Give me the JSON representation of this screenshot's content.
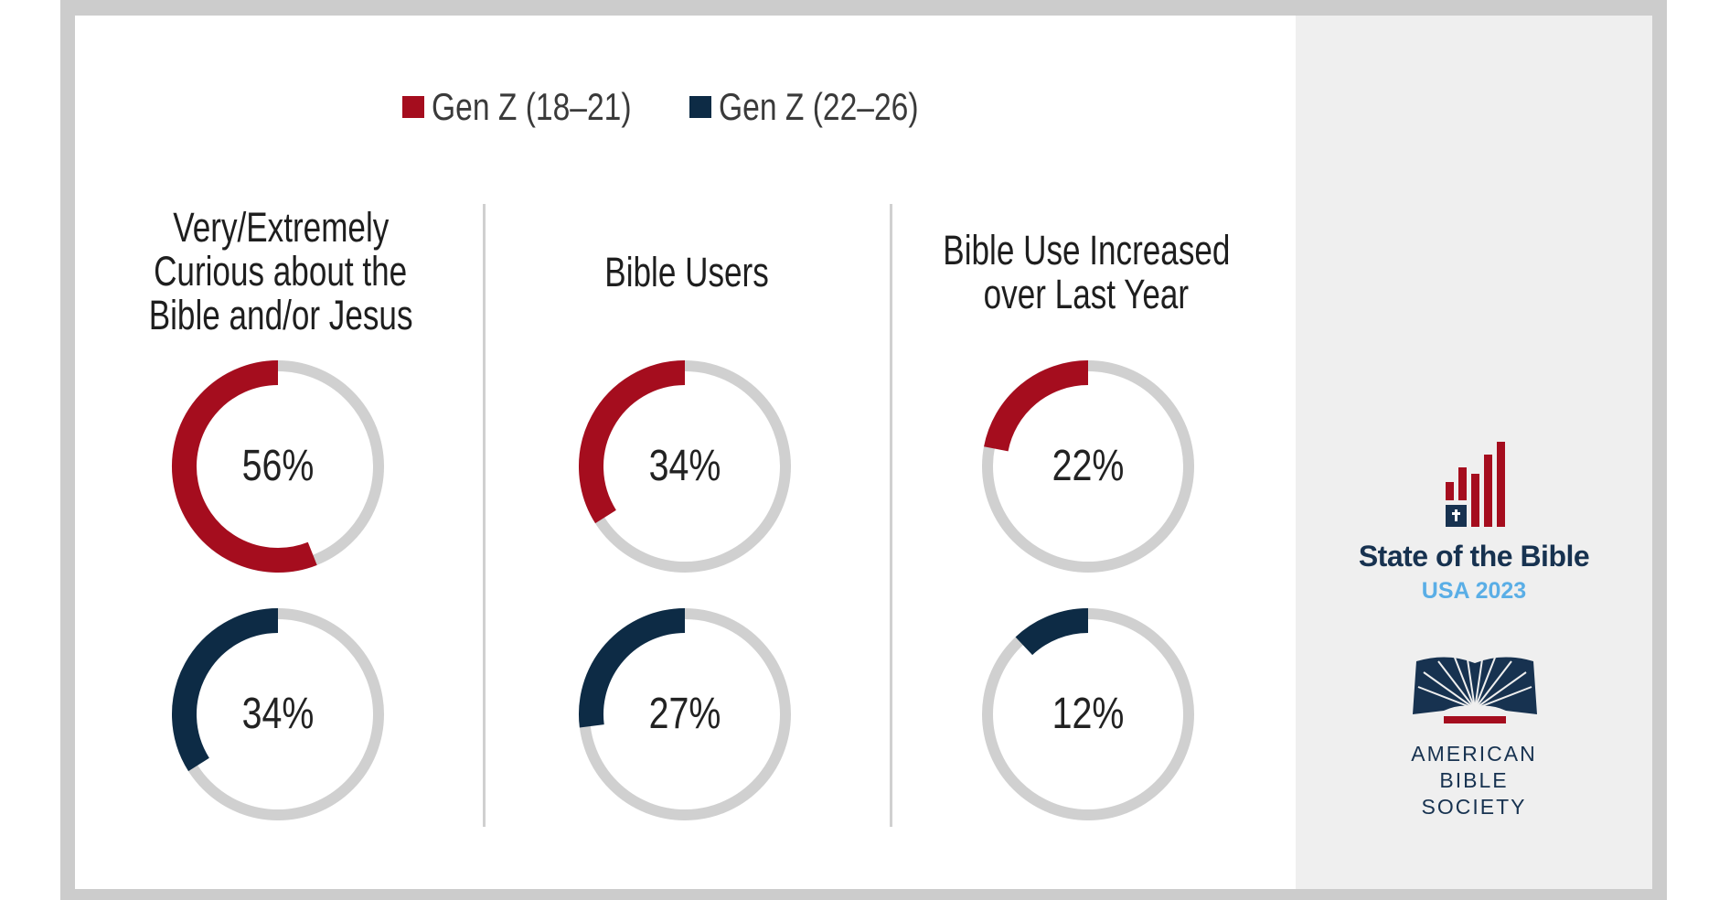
{
  "colors": {
    "series1": "#a50d1e",
    "series2": "#0d2b45",
    "track": "#d0d0d0",
    "logo_navy": "#173250",
    "logo_blue": "#5aaee6"
  },
  "chart_data": {
    "type": "donut",
    "legend_position": "top",
    "series": [
      {
        "name": "Gen Z (18–21)",
        "color": "#a50d1e",
        "values": [
          56,
          34,
          22
        ]
      },
      {
        "name": "Gen Z (22–26)",
        "color": "#0d2b45",
        "values": [
          34,
          27,
          12
        ]
      }
    ],
    "categories": [
      [
        "Very/Extremely",
        "Curious about the",
        "Bible and/or Jesus"
      ],
      [
        "Bible Users"
      ],
      [
        "Bible Use Increased",
        "over Last Year"
      ]
    ],
    "labels": [
      [
        "56%",
        "34%",
        "22%"
      ],
      [
        "34%",
        "27%",
        "12%"
      ]
    ],
    "unit": "%",
    "range": [
      0,
      100
    ]
  },
  "logo": {
    "title": "State of the Bible",
    "subtitle": "USA 2023",
    "org_lines": [
      "AMERICAN",
      "BIBLE",
      "SOCIETY"
    ]
  }
}
